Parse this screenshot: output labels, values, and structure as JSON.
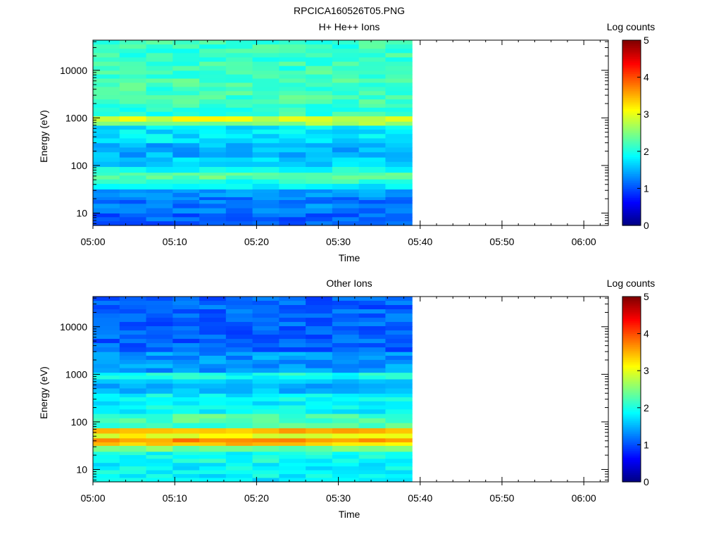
{
  "figure": {
    "title": "RPCICA160526T05.PNG"
  },
  "chart_data": [
    {
      "type": "heatmap",
      "title": "H+ He++ Ions",
      "xlabel": "Time",
      "ylabel": "Energy (eV)",
      "yscale": "log",
      "ylim": [
        5.5,
        43000
      ],
      "xlim": [
        "05:00",
        "06:03"
      ],
      "x_ticks": [
        "05:00",
        "05:10",
        "05:20",
        "05:30",
        "05:40",
        "05:50",
        "06:00"
      ],
      "y_ticks": [
        "10",
        "100",
        "1000",
        "10000"
      ],
      "data_extent": [
        "05:00",
        "05:39"
      ],
      "grid": false,
      "colorbar": {
        "label": "Log counts",
        "range": [
          0,
          5
        ],
        "ticks": [
          "0",
          "1",
          "2",
          "3",
          "4",
          "5"
        ],
        "colormap": "jet"
      },
      "energy_bands": [
        {
          "energy": [
            5.5,
            10
          ],
          "log_counts": 1.1
        },
        {
          "energy": [
            10,
            16
          ],
          "log_counts": 1.25
        },
        {
          "energy": [
            16,
            22
          ],
          "log_counts": 1.2
        },
        {
          "energy": [
            22,
            32
          ],
          "log_counts": 1.4
        },
        {
          "energy": [
            32,
            42
          ],
          "log_counts": 1.75
        },
        {
          "energy": [
            42,
            52
          ],
          "log_counts": 2.05
        },
        {
          "energy": [
            52,
            72
          ],
          "log_counts": 2.35
        },
        {
          "energy": [
            72,
            95
          ],
          "log_counts": 1.95
        },
        {
          "energy": [
            95,
            150
          ],
          "log_counts": 1.65
        },
        {
          "energy": [
            150,
            300
          ],
          "log_counts": 1.5
        },
        {
          "energy": [
            300,
            700
          ],
          "log_counts": 1.75
        },
        {
          "energy": [
            700,
            850
          ],
          "log_counts": 2.6
        },
        {
          "energy": [
            850,
            1100
          ],
          "log_counts": 2.95
        },
        {
          "energy": [
            1100,
            2000
          ],
          "log_counts": 2.1
        },
        {
          "energy": [
            2000,
            10000
          ],
          "log_counts": 2.2
        },
        {
          "energy": [
            10000,
            43000
          ],
          "log_counts": 2.15
        }
      ]
    },
    {
      "type": "heatmap",
      "title": "Other Ions",
      "xlabel": "Time",
      "ylabel": "Energy (eV)",
      "yscale": "log",
      "ylim": [
        5.5,
        43000
      ],
      "xlim": [
        "05:00",
        "06:03"
      ],
      "x_ticks": [
        "05:00",
        "05:10",
        "05:20",
        "05:30",
        "05:40",
        "05:50",
        "06:00"
      ],
      "y_ticks": [
        "10",
        "100",
        "1000",
        "10000"
      ],
      "data_extent": [
        "05:00",
        "05:39"
      ],
      "grid": false,
      "colorbar": {
        "label": "Log counts",
        "range": [
          0,
          5
        ],
        "ticks": [
          "0",
          "1",
          "2",
          "3",
          "4",
          "5"
        ],
        "colormap": "jet"
      },
      "energy_bands": [
        {
          "energy": [
            5.5,
            14
          ],
          "log_counts": 1.85
        },
        {
          "energy": [
            14,
            24
          ],
          "log_counts": 1.95
        },
        {
          "energy": [
            24,
            32
          ],
          "log_counts": 2.4
        },
        {
          "energy": [
            32,
            38
          ],
          "log_counts": 3.35
        },
        {
          "energy": [
            38,
            46
          ],
          "log_counts": 3.7
        },
        {
          "energy": [
            46,
            58
          ],
          "log_counts": 3.0
        },
        {
          "energy": [
            58,
            75
          ],
          "log_counts": 3.55
        },
        {
          "energy": [
            75,
            150
          ],
          "log_counts": 2.25
        },
        {
          "energy": [
            150,
            400
          ],
          "log_counts": 1.85
        },
        {
          "energy": [
            400,
            800
          ],
          "log_counts": 1.55
        },
        {
          "energy": [
            800,
            1100
          ],
          "log_counts": 1.95
        },
        {
          "energy": [
            1100,
            3000
          ],
          "log_counts": 1.35
        },
        {
          "energy": [
            3000,
            43000
          ],
          "log_counts": 1.1
        }
      ]
    }
  ]
}
